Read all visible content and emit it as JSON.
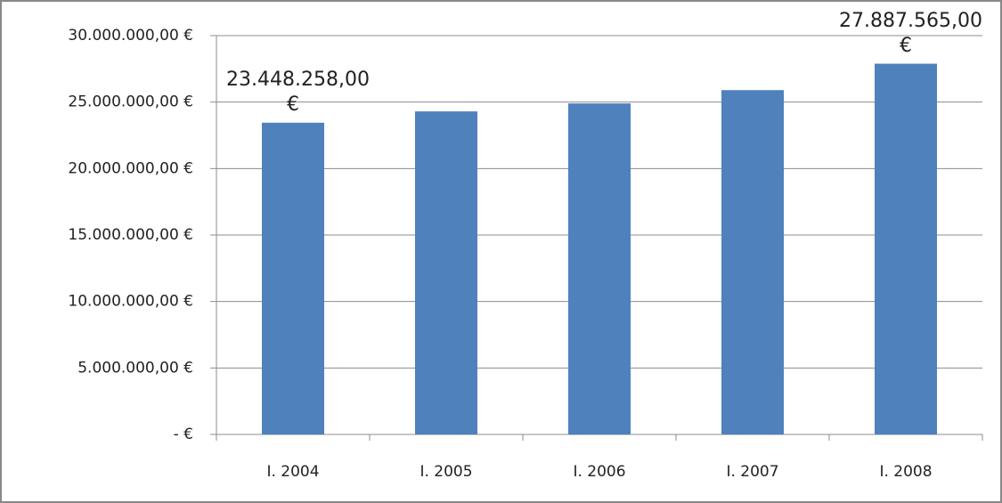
{
  "chart_data": {
    "type": "bar",
    "categories": [
      "I. 2004",
      "I. 2005",
      "I. 2006",
      "I. 2007",
      "I. 2008"
    ],
    "values": [
      23448258,
      24300000,
      24900000,
      25900000,
      27887565
    ],
    "value_labels": [
      "23.448.258,00 €",
      null,
      null,
      null,
      "27.887.565,00 €"
    ],
    "color": "#4f81bd",
    "ylim": [
      0,
      30000000
    ],
    "yticks": [
      {
        "value": 0,
        "label": "-  €"
      },
      {
        "value": 5000000,
        "label": "5.000.000,00 €"
      },
      {
        "value": 10000000,
        "label": "10.000.000,00 €"
      },
      {
        "value": 15000000,
        "label": "15.000.000,00 €"
      },
      {
        "value": 20000000,
        "label": "20.000.000,00 €"
      },
      {
        "value": 25000000,
        "label": "25.000.000,00 €"
      },
      {
        "value": 30000000,
        "label": "30.000.000,00 €"
      }
    ],
    "grid": true
  }
}
